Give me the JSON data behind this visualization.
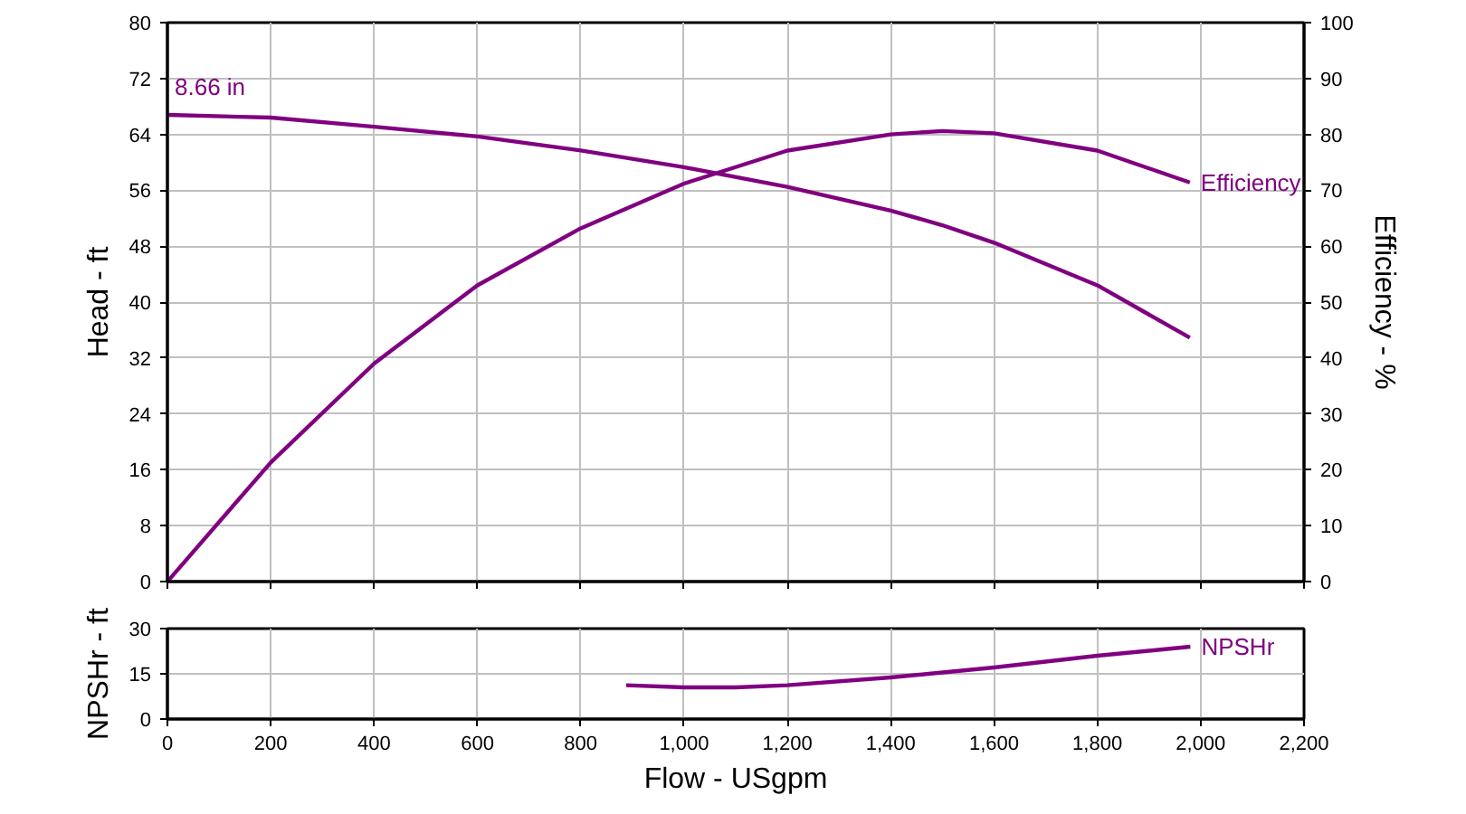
{
  "chart_data": [
    {
      "type": "line",
      "ylabel": "Head - ft",
      "y2label": "Efficiency - %",
      "x": [
        0,
        200,
        400,
        600,
        800,
        1000,
        1200,
        1400,
        1500,
        1600,
        1800,
        1979
      ],
      "series": [
        {
          "name": "8.66 in",
          "color": "#800080",
          "values": [
            66.8,
            66.4,
            65.1,
            63.7,
            61.7,
            59.3,
            56.5,
            53.1,
            51,
            48.5,
            42.4,
            34.9
          ]
        },
        {
          "name": "Efficiency",
          "color": "#800080",
          "axis": "y2",
          "values": [
            0,
            21.3,
            39,
            53,
            63.2,
            71.2,
            77.1,
            80,
            80.6,
            80.2,
            77.1,
            71.4
          ]
        }
      ],
      "xlim": [
        0,
        2200
      ],
      "xticks": [
        0,
        200,
        400,
        600,
        800,
        1000,
        1200,
        1400,
        1600,
        1800,
        2000,
        2200
      ],
      "ylim": [
        0,
        80
      ],
      "yticks": [
        0,
        8,
        16,
        24,
        32,
        40,
        48,
        56,
        64,
        72,
        80
      ],
      "y2lim": [
        0,
        100
      ],
      "y2ticks": [
        0,
        10,
        20,
        30,
        40,
        50,
        60,
        70,
        80,
        90,
        100
      ],
      "grid": true,
      "legend": false,
      "tick_labels": "y",
      "marker": "none",
      "line_style": "solid"
    },
    {
      "type": "line",
      "xlabel": "Flow - USgpm",
      "ylabel": "NPSHr - ft",
      "x": [
        888,
        1000,
        1100,
        1200,
        1400,
        1600,
        1800,
        1980
      ],
      "series": [
        {
          "name": "NPSHr",
          "color": "#800080",
          "values": [
            11.2,
            10.5,
            10.5,
            11.2,
            13.8,
            17.1,
            21,
            24
          ]
        }
      ],
      "xlim": [
        0,
        2200
      ],
      "xticks": [
        0,
        200,
        400,
        600,
        800,
        {
          "value": 1000,
          "label": "1,000"
        },
        {
          "value": 1200,
          "label": "1,200"
        },
        {
          "value": 1400,
          "label": "1,400"
        },
        {
          "value": 1600,
          "label": "1,600"
        },
        {
          "value": 1800,
          "label": "1,800"
        },
        {
          "value": 2000,
          "label": "2,000"
        },
        {
          "value": 2200,
          "label": "2,200"
        }
      ],
      "ylim": [
        0,
        30
      ],
      "yticks": [
        0,
        15,
        30
      ],
      "grid": true,
      "legend": false,
      "marker": "none",
      "line_style": "solid"
    }
  ]
}
